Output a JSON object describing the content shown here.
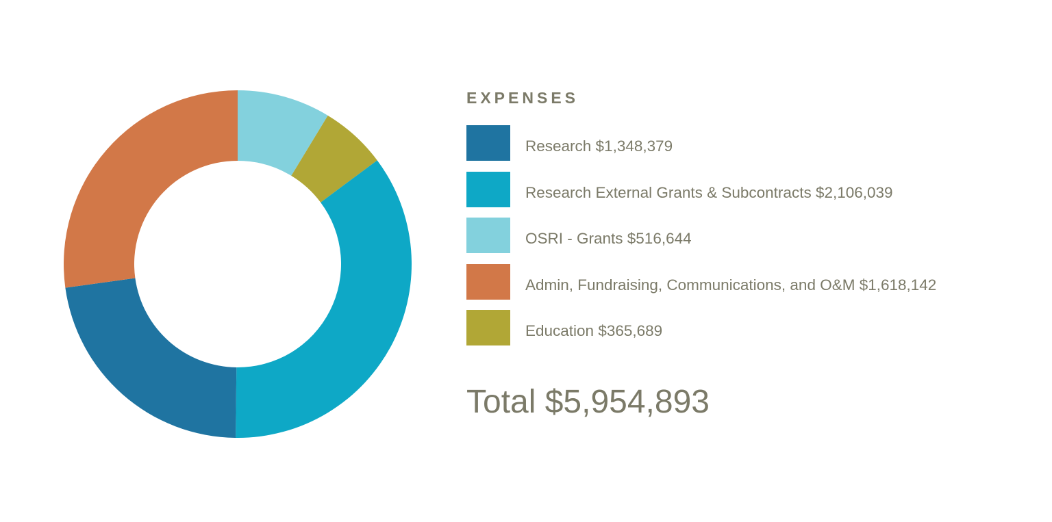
{
  "chart_data": {
    "type": "pie",
    "title": "EXPENSES",
    "legend": "right",
    "categories": [
      "Research $1,348,379",
      "Research External Grants & Subcontracts $2,106,039",
      "OSRI - Grants $516,644",
      "Admin, Fundraising, Communications, and O&M $1,618,142",
      "Education $365,689"
    ],
    "values": [
      1348379,
      2106039,
      516644,
      1618142,
      365689
    ],
    "colors": [
      "#1f74a1",
      "#0ea8c6",
      "#83d1dd",
      "#d27848",
      "#b1a736"
    ],
    "donut_order": [
      2,
      4,
      1,
      0,
      3
    ],
    "total_label": "Total $5,954,893"
  }
}
